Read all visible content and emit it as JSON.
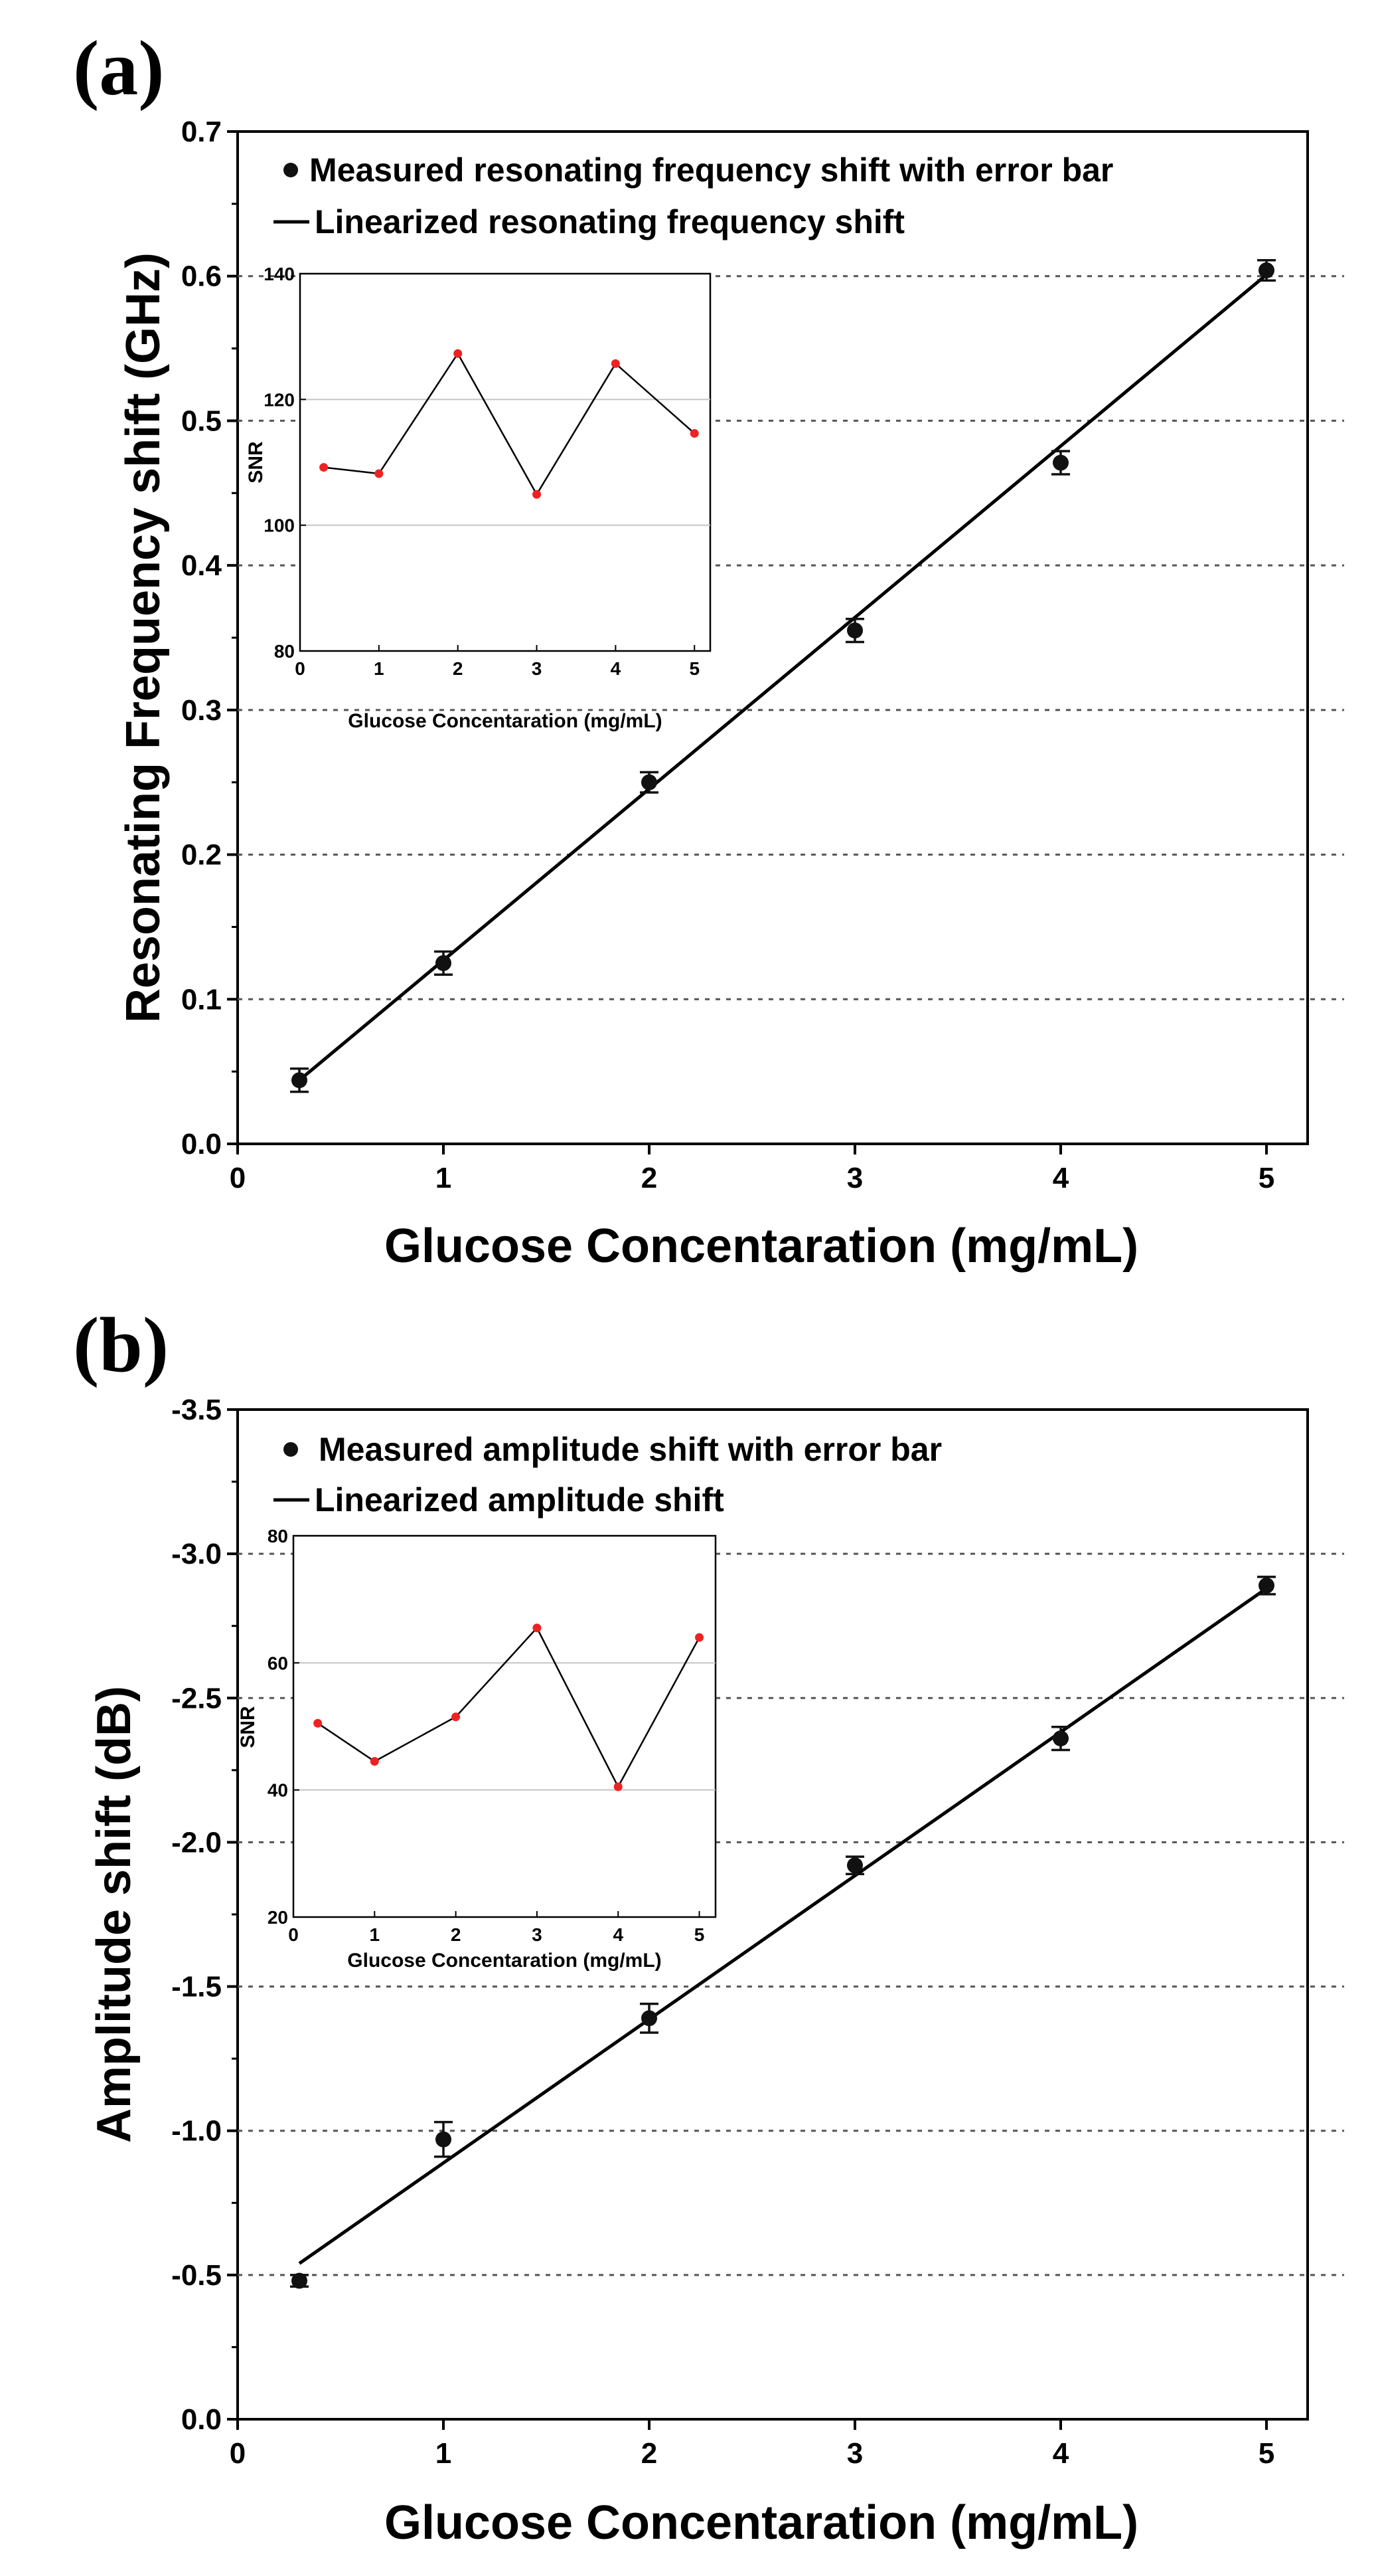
{
  "colors": {
    "axis": "#000000",
    "line": "#000000",
    "marker": "#111111",
    "grid": "#555555",
    "inset_marker": "#ee2222",
    "inset_grid": "#c4c4c4"
  },
  "chart_data": [
    {
      "id": "a",
      "type": "scatter",
      "panel_label": "(a)",
      "xlabel": "Glucose Concentaration (mg/mL)",
      "ylabel": "Resonating Frequency shift (GHz)",
      "xlim": [
        0,
        5.2
      ],
      "ylim": [
        0,
        0.7
      ],
      "xticks": [
        0,
        1,
        2,
        3,
        4,
        5
      ],
      "xtick_labels": [
        "0",
        "1",
        "2",
        "3",
        "4",
        "5"
      ],
      "yticks": [
        0,
        0.1,
        0.2,
        0.3,
        0.4,
        0.5,
        0.6,
        0.7
      ],
      "ytick_labels": [
        "0.0",
        "0.1",
        "0.2",
        "0.3",
        "0.4",
        "0.5",
        "0.6",
        "0.7"
      ],
      "grid_y": [
        0.1,
        0.2,
        0.3,
        0.4,
        0.5,
        0.6
      ],
      "legend": [
        "Measured resonating frequency shift with error bar",
        "Linearized resonating frequency shift"
      ],
      "series": [
        {
          "name": "Measured resonating frequency shift with error bar",
          "x": [
            0.3,
            1,
            2,
            3,
            4,
            5
          ],
          "y": [
            0.044,
            0.125,
            0.25,
            0.355,
            0.471,
            0.604
          ],
          "err": [
            0.008,
            0.008,
            0.007,
            0.008,
            0.008,
            0.007
          ]
        },
        {
          "name": "Linearized resonating frequency shift",
          "x": [
            0.3,
            5
          ],
          "y": [
            0.044,
            0.601
          ]
        }
      ],
      "inset": {
        "xlabel": "Glucose Concentaration (mg/mL)",
        "ylabel": "SNR",
        "xlim": [
          0,
          5.2
        ],
        "ylim": [
          80,
          140
        ],
        "xticks": [
          0,
          1,
          2,
          3,
          4,
          5
        ],
        "xtick_labels": [
          "0",
          "1",
          "2",
          "3",
          "4",
          "5"
        ],
        "yticks": [
          80,
          100,
          120,
          140
        ],
        "ytick_labels": [
          "80",
          "100",
          "120",
          "140"
        ],
        "x": [
          0.3,
          1,
          2,
          3,
          4,
          5
        ],
        "y": [
          109.2,
          108.2,
          127.3,
          104.9,
          125.7,
          114.6
        ]
      }
    },
    {
      "id": "b",
      "type": "scatter",
      "panel_label": "(b)",
      "xlabel": "Glucose Concentaration (mg/mL)",
      "ylabel": "Amplitude shift (dB)",
      "xlim": [
        0,
        5.2
      ],
      "ylim": [
        0,
        -3.5
      ],
      "xticks": [
        0,
        1,
        2,
        3,
        4,
        5
      ],
      "xtick_labels": [
        "0",
        "1",
        "2",
        "3",
        "4",
        "5"
      ],
      "yticks": [
        0,
        -0.5,
        -1.0,
        -1.5,
        -2.0,
        -2.5,
        -3.0,
        -3.5
      ],
      "ytick_labels": [
        "0.0",
        "-0.5",
        "-1.0",
        "-1.5",
        "-2.0",
        "-2.5",
        "-3.0",
        "-3.5"
      ],
      "grid_y": [
        -0.5,
        -1.0,
        -1.5,
        -2.0,
        -2.5,
        -3.0
      ],
      "legend": [
        "Measured amplitude shift with error bar",
        "Linearized amplitude shift"
      ],
      "series": [
        {
          "name": "Measured amplitude shift with error bar",
          "x": [
            0.3,
            1,
            2,
            3,
            4,
            5
          ],
          "y": [
            -0.48,
            -0.97,
            -1.39,
            -1.92,
            -2.36,
            -2.89
          ],
          "err": [
            0.02,
            0.06,
            0.05,
            0.03,
            0.04,
            0.03
          ]
        },
        {
          "name": "Linearized amplitude shift",
          "x": [
            0.3,
            5
          ],
          "y": [
            -0.54,
            -2.88
          ]
        }
      ],
      "inset": {
        "xlabel": "Glucose Concentaration (mg/mL)",
        "ylabel": "SNR",
        "xlim": [
          0,
          5.2
        ],
        "ylim": [
          20,
          80
        ],
        "xticks": [
          0,
          1,
          2,
          3,
          4,
          5
        ],
        "xtick_labels": [
          "0",
          "1",
          "2",
          "3",
          "4",
          "5"
        ],
        "yticks": [
          20,
          40,
          60,
          80
        ],
        "ytick_labels": [
          "20",
          "40",
          "60",
          "80"
        ],
        "x": [
          0.3,
          1,
          2,
          3,
          4,
          5
        ],
        "y": [
          50.5,
          44.5,
          51.5,
          65.5,
          40.5,
          64
        ]
      }
    }
  ]
}
